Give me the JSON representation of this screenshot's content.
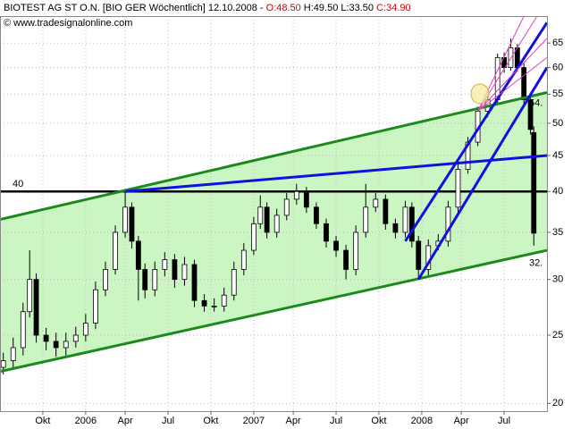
{
  "chart_data": {
    "type": "candlestick",
    "header": {
      "name": "BIOTEST AG ST O.N. [BIO GER  Wöchentlich] 12.10.2008 - ",
      "open": "O:48.50",
      "high": "H:49.50",
      "low": "L:33.50",
      "close": "C:34.90"
    },
    "copyright": "© www.tradesignalonline.com",
    "log_scale": true,
    "grid": true,
    "up_color": "#ffffff",
    "down_color": "#000000",
    "xlim": [
      -1,
      165
    ],
    "ylim": [
      19.5,
      71
    ],
    "yticks": [
      20,
      25,
      30,
      35,
      40,
      45,
      50,
      55,
      60,
      65
    ],
    "xticks": [
      {
        "value": 12,
        "label": "Okt"
      },
      {
        "value": 25,
        "label": "2006"
      },
      {
        "value": 37,
        "label": "Apr"
      },
      {
        "value": 50,
        "label": "Jul"
      },
      {
        "value": 63,
        "label": "Okt"
      },
      {
        "value": 76,
        "label": "2007"
      },
      {
        "value": 88,
        "label": "Apr"
      },
      {
        "value": 101,
        "label": "Jul"
      },
      {
        "value": 114,
        "label": "Okt"
      },
      {
        "value": 127,
        "label": "2008"
      },
      {
        "value": 139,
        "label": "Apr"
      },
      {
        "value": 152,
        "label": "Jul"
      }
    ],
    "x": [
      0,
      3,
      6,
      8,
      10,
      13,
      16,
      19,
      22,
      25,
      28,
      31,
      34,
      37,
      39,
      41,
      43,
      46,
      49,
      52,
      55,
      58,
      61,
      64,
      67,
      70,
      73,
      76,
      78,
      80,
      83,
      86,
      89,
      92,
      95,
      98,
      101,
      104,
      107,
      110,
      113,
      116,
      119,
      122,
      124,
      126,
      129,
      132,
      135,
      138,
      141,
      144,
      147,
      150,
      152,
      154,
      156,
      158,
      160,
      161
    ],
    "open": [
      22.5,
      23,
      24,
      27,
      30,
      25,
      24.5,
      24,
      24.5,
      25,
      26,
      29,
      31,
      35,
      38,
      34,
      31,
      29,
      31,
      32,
      30,
      31.5,
      28,
      27.5,
      27.5,
      28.5,
      31,
      33,
      36,
      38,
      35,
      37,
      39,
      40,
      38,
      36,
      34,
      33,
      31,
      35,
      38,
      39,
      36,
      35,
      38,
      34,
      31,
      33.5,
      34,
      38,
      43,
      47,
      52,
      54,
      62,
      60,
      64,
      60,
      54,
      48.5
    ],
    "high": [
      23.6,
      24.8,
      27.8,
      33,
      30.6,
      25.6,
      25.2,
      25.2,
      25.7,
      26.8,
      29.8,
      31.8,
      35.8,
      40,
      38.6,
      34.6,
      31.6,
      31.8,
      32.8,
      32.6,
      32.3,
      32,
      28.6,
      28.2,
      29.2,
      31.8,
      33.8,
      36.8,
      39.5,
      38.6,
      37.8,
      39.8,
      41,
      40.6,
      38.6,
      36.6,
      34.6,
      33.6,
      35.8,
      41,
      39.8,
      39.6,
      36.6,
      38.8,
      38.6,
      34.6,
      34.2,
      34.8,
      38.8,
      43.8,
      47.8,
      52.8,
      54.8,
      62.8,
      63,
      66,
      64.8,
      60.8,
      55,
      49.5
    ],
    "low": [
      22,
      22.5,
      23.4,
      26.5,
      24.4,
      23.8,
      23.3,
      23.4,
      24,
      24.5,
      25.5,
      28.4,
      30.5,
      34.4,
      33.2,
      28,
      28.2,
      28.4,
      30.3,
      29.2,
      29.4,
      27.4,
      27,
      27,
      27,
      28,
      30.4,
      32.5,
      35.4,
      34.3,
      34.4,
      36.4,
      38.3,
      37.3,
      35.4,
      33.3,
      32.3,
      30,
      30.4,
      34.4,
      37.4,
      35.3,
      34.3,
      34.4,
      33.3,
      30,
      30.4,
      33,
      33.4,
      37.4,
      42.4,
      46.4,
      51,
      53.4,
      59,
      59.4,
      59.2,
      53.2,
      48.2,
      33.5
    ],
    "close": [
      23,
      24,
      27,
      30,
      25,
      24.5,
      24,
      24.5,
      25,
      26,
      29,
      31,
      35,
      38,
      34,
      31,
      29,
      31,
      32,
      30,
      31.5,
      28,
      27.5,
      27.5,
      28.5,
      31,
      33,
      36,
      38,
      35,
      37,
      39,
      40,
      38,
      36,
      34,
      33,
      31,
      35,
      38,
      39,
      36,
      35,
      38,
      34,
      31,
      33.5,
      34,
      38,
      43,
      47,
      52,
      54,
      62,
      60,
      64,
      60,
      54,
      49,
      34.9
    ],
    "channel": {
      "color": "#ccf5c4",
      "x": [
        -1,
        165
      ],
      "upper": [
        36.5,
        55.3
      ],
      "lower": [
        22.2,
        33
      ]
    },
    "hline": 40,
    "lines": [
      {
        "color": "#1a8a1a",
        "x": [
          -1,
          165
        ],
        "y": [
          36.5,
          55.3
        ]
      },
      {
        "color": "#1a8a1a",
        "x": [
          -1,
          165
        ],
        "y": [
          22.2,
          33
        ]
      },
      {
        "color": "#1010e0",
        "x": [
          37,
          165
        ],
        "y": [
          40,
          45
        ]
      },
      {
        "color": "#1010e0",
        "x": [
          122,
          165
        ],
        "y": [
          34,
          69.5
        ]
      },
      {
        "color": "#1010e0",
        "x": [
          126,
          165
        ],
        "y": [
          30,
          60
        ]
      },
      {
        "color": "#e040c0",
        "x": [
          144,
          158
        ],
        "y": [
          52,
          71
        ]
      },
      {
        "color": "#e040c0",
        "x": [
          144,
          162
        ],
        "y": [
          52,
          71
        ]
      },
      {
        "color": "#e040c0",
        "x": [
          144,
          165
        ],
        "y": [
          52,
          66
        ]
      },
      {
        "color": "#e040c0",
        "x": [
          144,
          165
        ],
        "y": [
          52,
          62
        ]
      }
    ],
    "right_labels": [
      {
        "value": 54,
        "label": "54.",
        "color": "#1a8a1a"
      },
      {
        "value": 32,
        "label": "32.",
        "color": "#555555"
      }
    ]
  }
}
